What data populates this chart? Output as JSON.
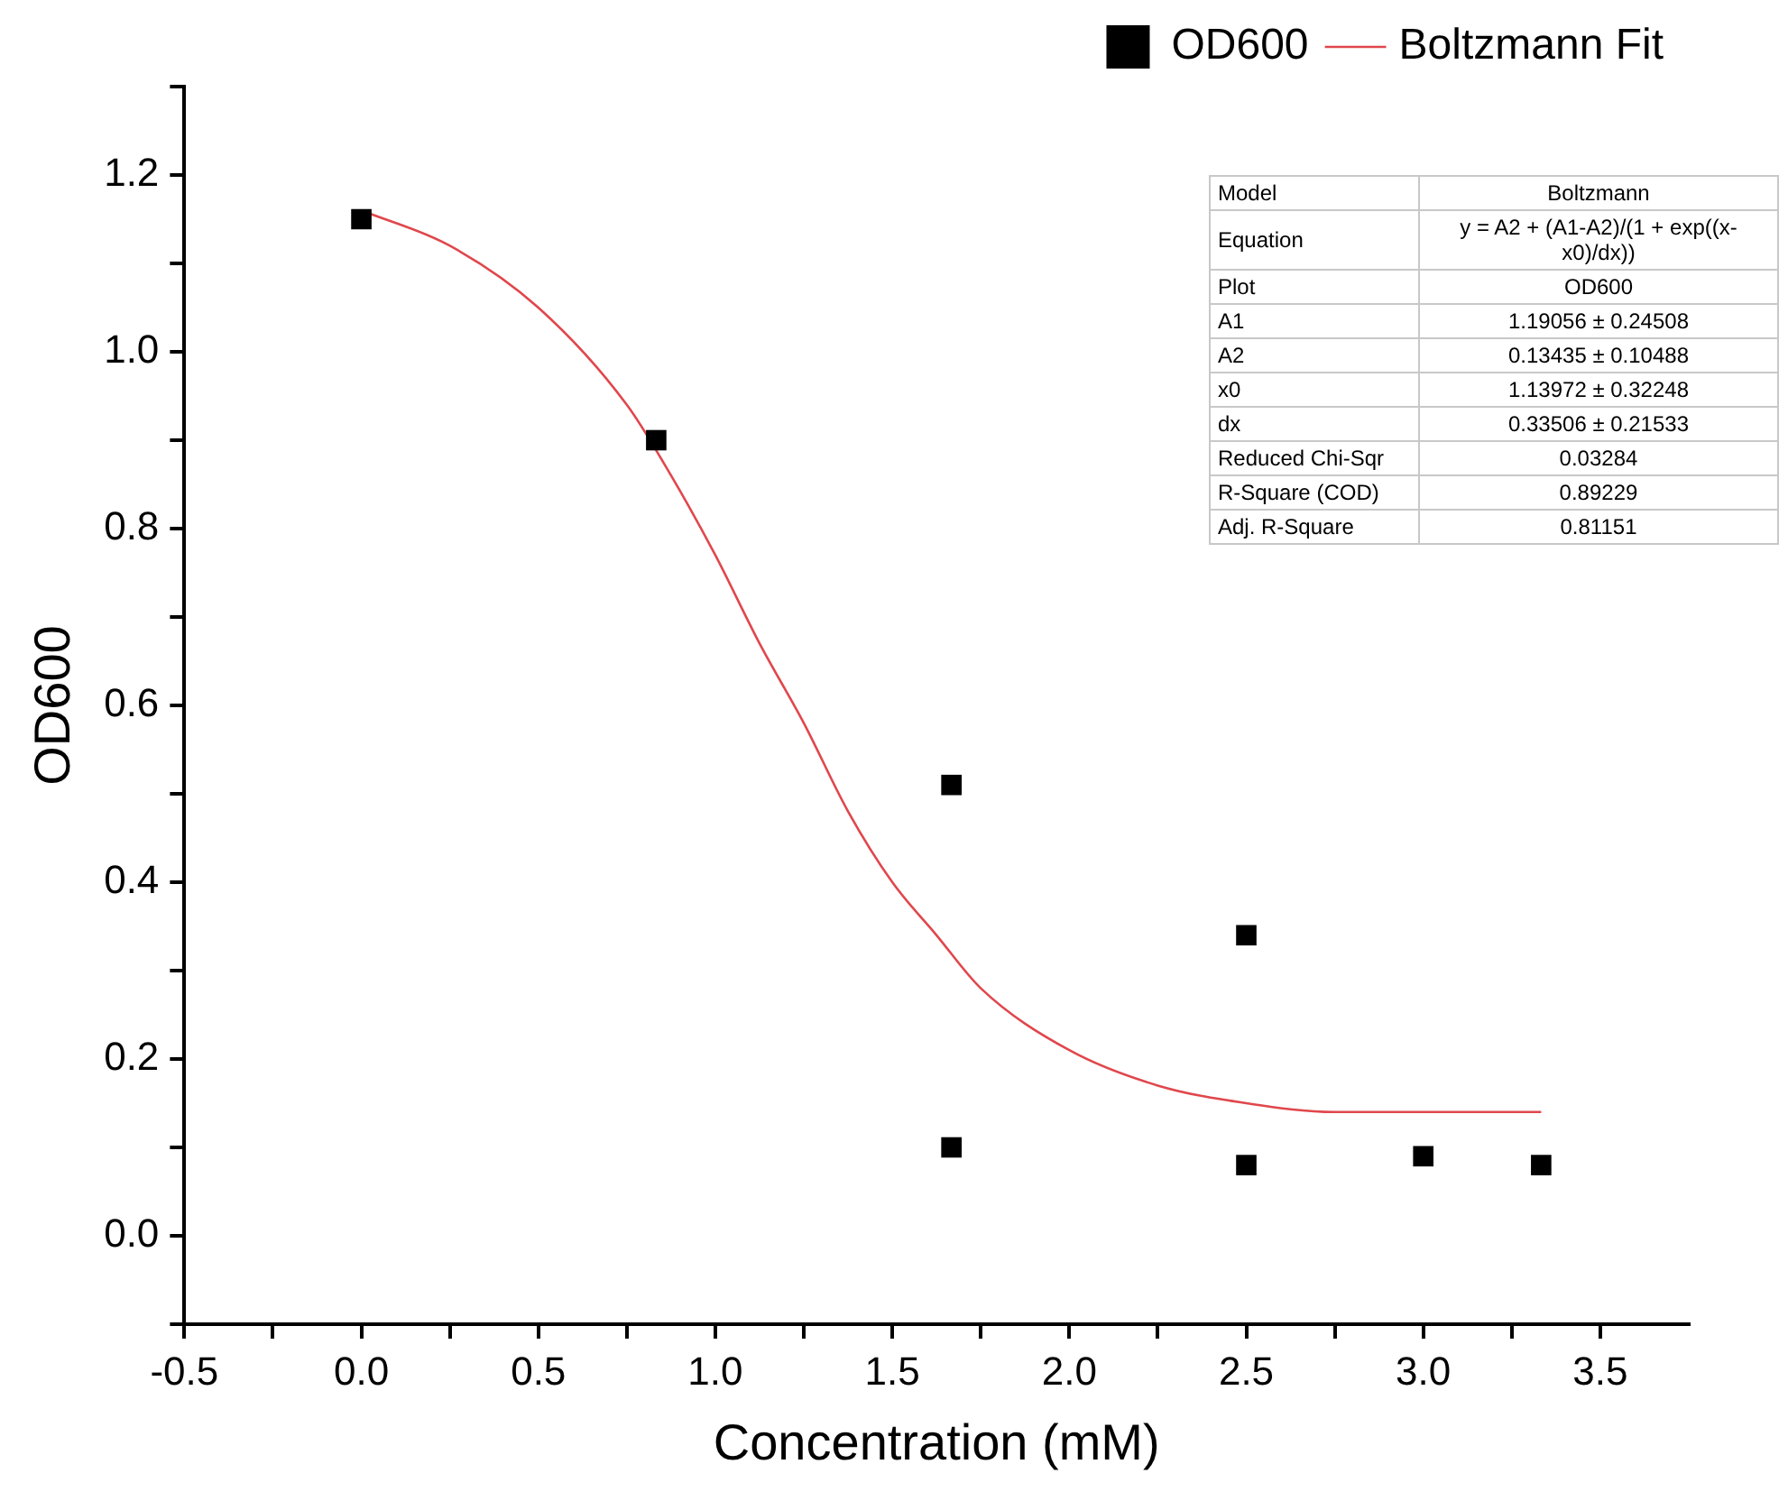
{
  "chart_data": {
    "type": "scatter",
    "xlabel": "Concentration (mM)",
    "ylabel": "OD600",
    "xlim": [
      -0.5,
      3.75
    ],
    "ylim": [
      -0.1,
      1.3
    ],
    "xticks": [
      {
        "value": -0.5,
        "label": "-0.5"
      },
      {
        "value": -0.25,
        "label": null
      },
      {
        "value": 0,
        "label": "0.0"
      },
      {
        "value": 0.25,
        "label": null
      },
      {
        "value": 0.5,
        "label": "0.5"
      },
      {
        "value": 0.75,
        "label": null
      },
      {
        "value": 1,
        "label": "1.0"
      },
      {
        "value": 1.25,
        "label": null
      },
      {
        "value": 1.5,
        "label": "1.5"
      },
      {
        "value": 1.75,
        "label": null
      },
      {
        "value": 2,
        "label": "2.0"
      },
      {
        "value": 2.25,
        "label": null
      },
      {
        "value": 2.5,
        "label": "2.5"
      },
      {
        "value": 2.75,
        "label": null
      },
      {
        "value": 3,
        "label": "3.0"
      },
      {
        "value": 3.25,
        "label": null
      },
      {
        "value": 3.5,
        "label": "3.5"
      }
    ],
    "yticks": [
      {
        "value": -0.1,
        "label": null
      },
      {
        "value": 0,
        "label": "0.0"
      },
      {
        "value": 0.1,
        "label": null
      },
      {
        "value": 0.2,
        "label": "0.2"
      },
      {
        "value": 0.3,
        "label": null
      },
      {
        "value": 0.4,
        "label": "0.4"
      },
      {
        "value": 0.5,
        "label": null
      },
      {
        "value": 0.6,
        "label": "0.6"
      },
      {
        "value": 0.7,
        "label": null
      },
      {
        "value": 0.8,
        "label": "0.8"
      },
      {
        "value": 0.9,
        "label": null
      },
      {
        "value": 1,
        "label": "1.0"
      },
      {
        "value": 1.1,
        "label": null
      },
      {
        "value": 1.2,
        "label": "1.2"
      },
      {
        "value": 1.3,
        "label": null
      }
    ],
    "grid": false,
    "legend": "top right",
    "marker": "square",
    "line_style": "solid",
    "series": [
      {
        "name": "OD600",
        "type": "scatter",
        "color": "#000000",
        "x": [
          0,
          0.833,
          1.667,
          1.667,
          2.5,
          2.5,
          3,
          3.333
        ],
        "values": [
          1.15,
          0.9,
          0.51,
          0.1,
          0.34,
          0.08,
          0.09,
          0.08
        ]
      },
      {
        "name": "Boltzmann Fit",
        "type": "line",
        "marker": "none",
        "color": "#e0474c",
        "x": [
          0,
          0.25,
          0.5,
          0.75,
          0.875,
          1,
          1.125,
          1.25,
          1.375,
          1.5,
          1.625,
          1.75,
          2,
          2.25,
          2.5,
          2.75,
          3,
          3.333
        ],
        "values": [
          1.16,
          1.12,
          1.05,
          0.94,
          0.86,
          0.77,
          0.67,
          0.58,
          0.48,
          0.4,
          0.34,
          0.28,
          0.21,
          0.17,
          0.15,
          0.14,
          0.14,
          0.14
        ]
      }
    ],
    "annotations": [
      "Model",
      "Boltzmann",
      "Equation",
      "y = A2 + (A1-A2)/(1 + exp((x-x0)/dx))",
      "Plot",
      "OD600",
      "A1",
      "1.19056 ± 0.24508",
      "A2",
      "0.13435 ± 0.10488",
      "x0",
      "1.13972 ± 0.32248",
      "dx",
      "0.33506 ± 0.21533",
      "Reduced Chi-Sqr",
      "0.03284",
      "R-Square (COD)",
      "0.89229",
      "Adj. R-Square",
      "0.81151"
    ]
  }
}
